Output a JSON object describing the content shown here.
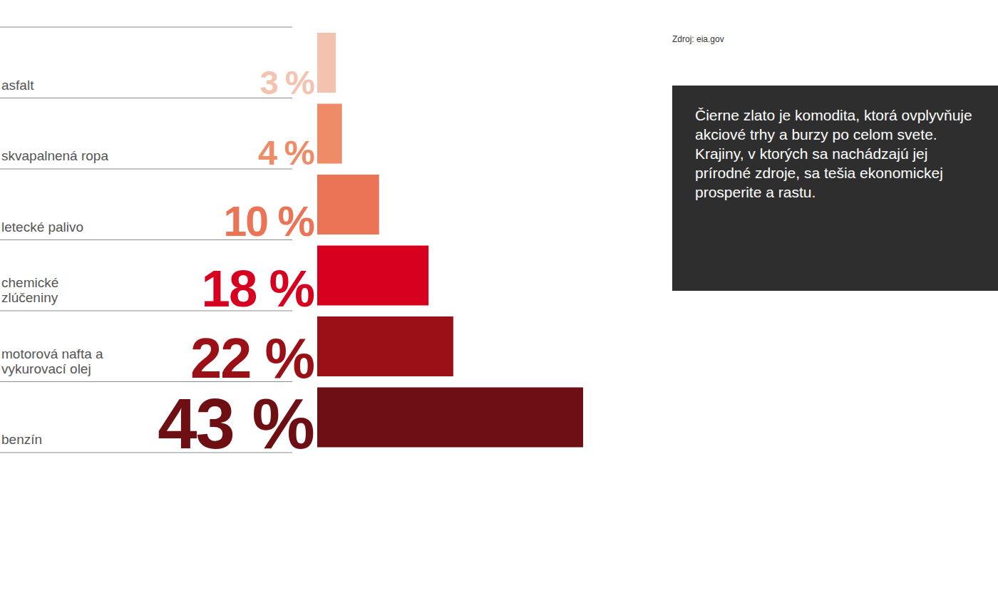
{
  "chart_data": {
    "type": "bar",
    "orientation": "horizontal",
    "categories": [
      "asfalt",
      "skvapalnená ropa",
      "letecké palivo",
      "chemické zlúčeniny",
      "motorová nafta a vykurovací olej",
      "benzín"
    ],
    "values": [
      3,
      4,
      10,
      18,
      22,
      43
    ],
    "value_labels": [
      "3 %",
      "4 %",
      "10 %",
      "18 %",
      "22 %",
      "43 %"
    ],
    "colors": [
      "#f3c3b0",
      "#ef8b66",
      "#ec7456",
      "#d7001f",
      "#9a1016",
      "#6e1013"
    ],
    "data_labels": true,
    "tick_labels": "y",
    "xlim": [
      0,
      43
    ],
    "annotations": [
      "Zdroj: eia.gov",
      "Čierne zlato je komodita, ktorá ovplyvňuje akciové trhy a burzy po celom svete. Krajiny, v ktorých sa nachádzajú jej prírodné zdroje, sa tešia ekonomickej prosperite a rastu."
    ]
  }
}
